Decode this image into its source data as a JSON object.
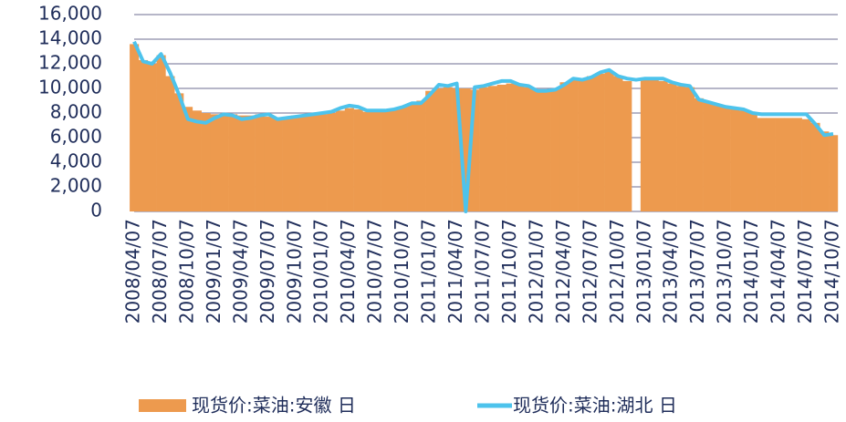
{
  "chart_data": {
    "type": "bar",
    "categories": [
      "2008/04/07",
      null,
      null,
      "2008/07/07",
      null,
      null,
      "2008/10/07",
      null,
      null,
      "2009/01/07",
      null,
      null,
      "2009/04/07",
      null,
      null,
      "2009/07/07",
      null,
      null,
      "2009/10/07",
      null,
      null,
      "2010/01/07",
      null,
      null,
      "2010/04/07",
      null,
      null,
      "2010/07/07",
      null,
      null,
      "2010/10/07",
      null,
      null,
      "2011/01/07",
      null,
      null,
      "2011/04/07",
      null,
      null,
      "2011/07/07",
      null,
      null,
      "2011/10/07",
      null,
      null,
      "2012/01/07",
      null,
      null,
      "2012/04/07",
      null,
      null,
      "2012/07/07",
      null,
      null,
      "2012/10/07",
      null,
      null,
      "2013/01/07",
      null,
      null,
      "2013/04/07",
      null,
      null,
      "2013/07/07",
      null,
      null,
      "2013/10/07",
      null,
      null,
      "2014/01/07",
      null,
      null,
      "2014/04/07",
      null,
      null,
      "2014/07/07",
      null,
      null,
      "2014/10/07"
    ],
    "series": [
      {
        "name": "现货价:菜油:安徽 日",
        "type": "bar",
        "color": "#ed9a4e",
        "values": [
          13600,
          12300,
          12000,
          12700,
          11000,
          9600,
          8500,
          8200,
          8000,
          7900,
          7800,
          7900,
          7800,
          7800,
          7900,
          7700,
          7600,
          7700,
          7800,
          7800,
          7900,
          7900,
          8000,
          8200,
          8400,
          8300,
          8100,
          8100,
          8200,
          8300,
          8500,
          8700,
          9000,
          9800,
          10000,
          10100,
          10000,
          10000,
          9900,
          10100,
          10200,
          10300,
          10400,
          10300,
          10100,
          9900,
          9800,
          10000,
          10500,
          10700,
          10800,
          11000,
          11200,
          11400,
          11000,
          10600,
          null,
          10700,
          10700,
          10600,
          10400,
          10200,
          10100,
          9200,
          8900,
          8700,
          8500,
          8300,
          8200,
          8000,
          7600,
          7600,
          7600,
          7600,
          7600,
          7500,
          7200,
          6500,
          6200
        ]
      },
      {
        "name": "现货价:菜油:湖北 日",
        "type": "line",
        "color": "#4dc3ec",
        "values": [
          13800,
          12200,
          12000,
          12800,
          11300,
          9500,
          7500,
          7300,
          7200,
          7600,
          7900,
          7800,
          7500,
          7600,
          7800,
          7900,
          7500,
          7600,
          7700,
          7800,
          7900,
          8000,
          8100,
          8400,
          8600,
          8500,
          8200,
          8200,
          8200,
          8300,
          8500,
          8800,
          8800,
          9500,
          10300,
          10200,
          10400,
          0,
          10100,
          10200,
          10400,
          10600,
          10600,
          10300,
          10200,
          9800,
          9800,
          9900,
          10300,
          10800,
          10700,
          10900,
          11300,
          11500,
          11000,
          10800,
          10700,
          10800,
          10800,
          10800,
          10500,
          10300,
          10200,
          9100,
          8900,
          8700,
          8500,
          8400,
          8300,
          8000,
          7900,
          7900,
          7900,
          7900,
          7900,
          7900,
          7100,
          6200,
          6300
        ]
      }
    ],
    "ylim": [
      0,
      16000
    ],
    "yticks": [
      0,
      {
        "value": 2000,
        "label": "2,000"
      },
      {
        "value": 4000,
        "label": "4,000"
      },
      {
        "value": 6000,
        "label": "6,000"
      },
      {
        "value": 8000,
        "label": "8,000"
      },
      {
        "value": 10000,
        "label": "10,000"
      },
      {
        "value": 12000,
        "label": "12,000"
      },
      {
        "value": 14000,
        "label": "14,000"
      },
      {
        "value": 16000,
        "label": "16,000"
      }
    ],
    "grid": true
  }
}
